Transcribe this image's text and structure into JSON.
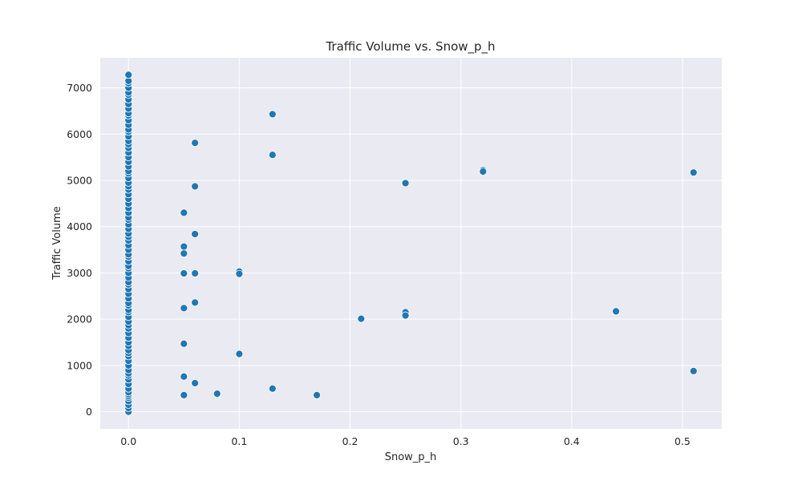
{
  "chart_data": {
    "type": "scatter",
    "title": "Traffic Volume vs. Snow_p_h",
    "xlabel": "Snow_p_h",
    "ylabel": "Traffic Volume",
    "xlim": [
      -0.0255,
      0.5355
    ],
    "ylim": [
      -370,
      7650
    ],
    "xticks": [
      0,
      0.1,
      0.2,
      0.3,
      0.4,
      0.5
    ],
    "xtick_labels": [
      "0.0",
      "0.1",
      "0.2",
      "0.3",
      "0.4",
      "0.5"
    ],
    "yticks": [
      0,
      1000,
      2000,
      3000,
      4000,
      5000,
      6000,
      7000
    ],
    "ytick_labels": [
      "0",
      "1000",
      "2000",
      "3000",
      "4000",
      "5000",
      "6000",
      "7000"
    ],
    "grid": true,
    "background": "#eaeaf2",
    "marker_color": "#1f77b4",
    "points": [
      {
        "x": 0.0,
        "y": 0
      },
      {
        "x": 0.0,
        "y": 80
      },
      {
        "x": 0.0,
        "y": 150
      },
      {
        "x": 0.0,
        "y": 230
      },
      {
        "x": 0.0,
        "y": 300
      },
      {
        "x": 0.0,
        "y": 340
      },
      {
        "x": 0.0,
        "y": 380
      },
      {
        "x": 0.0,
        "y": 420
      },
      {
        "x": 0.0,
        "y": 500
      },
      {
        "x": 0.0,
        "y": 600
      },
      {
        "x": 0.0,
        "y": 700
      },
      {
        "x": 0.0,
        "y": 780
      },
      {
        "x": 0.0,
        "y": 830
      },
      {
        "x": 0.0,
        "y": 900
      },
      {
        "x": 0.0,
        "y": 1000
      },
      {
        "x": 0.0,
        "y": 1100
      },
      {
        "x": 0.0,
        "y": 1200
      },
      {
        "x": 0.0,
        "y": 1270
      },
      {
        "x": 0.0,
        "y": 1330
      },
      {
        "x": 0.0,
        "y": 1420
      },
      {
        "x": 0.0,
        "y": 1500
      },
      {
        "x": 0.0,
        "y": 1600
      },
      {
        "x": 0.0,
        "y": 1700
      },
      {
        "x": 0.0,
        "y": 1800
      },
      {
        "x": 0.0,
        "y": 1870
      },
      {
        "x": 0.0,
        "y": 1950
      },
      {
        "x": 0.0,
        "y": 2050
      },
      {
        "x": 0.0,
        "y": 2150
      },
      {
        "x": 0.0,
        "y": 2200
      },
      {
        "x": 0.0,
        "y": 2300
      },
      {
        "x": 0.0,
        "y": 2350
      },
      {
        "x": 0.0,
        "y": 2450
      },
      {
        "x": 0.0,
        "y": 2550
      },
      {
        "x": 0.0,
        "y": 2650
      },
      {
        "x": 0.0,
        "y": 2750
      },
      {
        "x": 0.0,
        "y": 2800
      },
      {
        "x": 0.0,
        "y": 2900
      },
      {
        "x": 0.0,
        "y": 3000
      },
      {
        "x": 0.0,
        "y": 3100
      },
      {
        "x": 0.0,
        "y": 3150
      },
      {
        "x": 0.0,
        "y": 3250
      },
      {
        "x": 0.0,
        "y": 3350
      },
      {
        "x": 0.0,
        "y": 3400
      },
      {
        "x": 0.0,
        "y": 3500
      },
      {
        "x": 0.0,
        "y": 3600
      },
      {
        "x": 0.0,
        "y": 3700
      },
      {
        "x": 0.0,
        "y": 3780
      },
      {
        "x": 0.0,
        "y": 3850
      },
      {
        "x": 0.0,
        "y": 3950
      },
      {
        "x": 0.0,
        "y": 4050
      },
      {
        "x": 0.0,
        "y": 4150
      },
      {
        "x": 0.0,
        "y": 4200
      },
      {
        "x": 0.0,
        "y": 4300
      },
      {
        "x": 0.0,
        "y": 4400
      },
      {
        "x": 0.0,
        "y": 4500
      },
      {
        "x": 0.0,
        "y": 4600
      },
      {
        "x": 0.0,
        "y": 4700
      },
      {
        "x": 0.0,
        "y": 4800
      },
      {
        "x": 0.0,
        "y": 4870
      },
      {
        "x": 0.0,
        "y": 4950
      },
      {
        "x": 0.0,
        "y": 5050
      },
      {
        "x": 0.0,
        "y": 5150
      },
      {
        "x": 0.0,
        "y": 5200
      },
      {
        "x": 0.0,
        "y": 5300
      },
      {
        "x": 0.0,
        "y": 5400
      },
      {
        "x": 0.0,
        "y": 5500
      },
      {
        "x": 0.0,
        "y": 5600
      },
      {
        "x": 0.0,
        "y": 5700
      },
      {
        "x": 0.0,
        "y": 5780
      },
      {
        "x": 0.0,
        "y": 5850
      },
      {
        "x": 0.0,
        "y": 5950
      },
      {
        "x": 0.0,
        "y": 6050
      },
      {
        "x": 0.0,
        "y": 6100
      },
      {
        "x": 0.0,
        "y": 6200
      },
      {
        "x": 0.0,
        "y": 6300
      },
      {
        "x": 0.0,
        "y": 6400
      },
      {
        "x": 0.0,
        "y": 6450
      },
      {
        "x": 0.0,
        "y": 6550
      },
      {
        "x": 0.0,
        "y": 6650
      },
      {
        "x": 0.0,
        "y": 6750
      },
      {
        "x": 0.0,
        "y": 6850
      },
      {
        "x": 0.0,
        "y": 6900
      },
      {
        "x": 0.0,
        "y": 7000
      },
      {
        "x": 0.0,
        "y": 7100
      },
      {
        "x": 0.0,
        "y": 7150
      },
      {
        "x": 0.0,
        "y": 7280
      },
      {
        "x": 0.05,
        "y": 4300
      },
      {
        "x": 0.05,
        "y": 3570
      },
      {
        "x": 0.05,
        "y": 3420
      },
      {
        "x": 0.05,
        "y": 2990
      },
      {
        "x": 0.05,
        "y": 2240
      },
      {
        "x": 0.05,
        "y": 1470
      },
      {
        "x": 0.05,
        "y": 760
      },
      {
        "x": 0.05,
        "y": 360
      },
      {
        "x": 0.06,
        "y": 5810
      },
      {
        "x": 0.06,
        "y": 4870
      },
      {
        "x": 0.06,
        "y": 3840
      },
      {
        "x": 0.06,
        "y": 2990
      },
      {
        "x": 0.06,
        "y": 2360
      },
      {
        "x": 0.06,
        "y": 620
      },
      {
        "x": 0.08,
        "y": 390
      },
      {
        "x": 0.1,
        "y": 3030
      },
      {
        "x": 0.1,
        "y": 2980
      },
      {
        "x": 0.1,
        "y": 1250
      },
      {
        "x": 0.13,
        "y": 6430
      },
      {
        "x": 0.13,
        "y": 5550
      },
      {
        "x": 0.13,
        "y": 500
      },
      {
        "x": 0.17,
        "y": 360
      },
      {
        "x": 0.21,
        "y": 2010
      },
      {
        "x": 0.25,
        "y": 4940
      },
      {
        "x": 0.25,
        "y": 2150
      },
      {
        "x": 0.25,
        "y": 2080
      },
      {
        "x": 0.32,
        "y": 5220
      },
      {
        "x": 0.32,
        "y": 5190
      },
      {
        "x": 0.44,
        "y": 2170
      },
      {
        "x": 0.51,
        "y": 5170
      },
      {
        "x": 0.51,
        "y": 880
      }
    ]
  }
}
